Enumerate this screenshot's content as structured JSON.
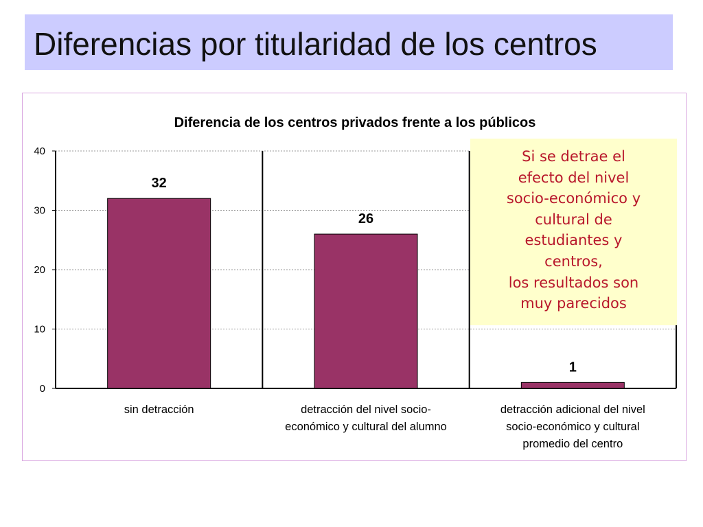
{
  "slide": {
    "title": "Diferencias por titularidad de los centros"
  },
  "callout": {
    "lines": [
      "Si se detrae el",
      "efecto del nivel",
      "socio-económico y",
      "cultural de",
      "estudiantes y",
      "centros,",
      "los resultados son",
      "muy parecidos"
    ]
  },
  "colors": {
    "bar": "#993366",
    "title_band": "#ccccff",
    "callout_bg": "#ffffcc",
    "callout_text": "#b8172b",
    "frame_border": "#d9a6e0"
  },
  "chart_data": {
    "type": "bar",
    "title": "Diferencia de los centros privados frente a los públicos",
    "categories": [
      [
        "sin detracción"
      ],
      [
        "detracción del nivel socio-",
        "económico y cultural del alumno"
      ],
      [
        "detracción adicional del nivel",
        "socio-económico y cultural",
        "promedio del centro"
      ]
    ],
    "values": [
      32,
      26,
      1
    ],
    "data_labels": [
      "32",
      "26",
      "1"
    ],
    "ylim": [
      0,
      40
    ],
    "yticks": [
      0,
      10,
      20,
      30,
      40
    ],
    "xlabel": "",
    "ylabel": "",
    "grid": true,
    "legend": "none"
  }
}
